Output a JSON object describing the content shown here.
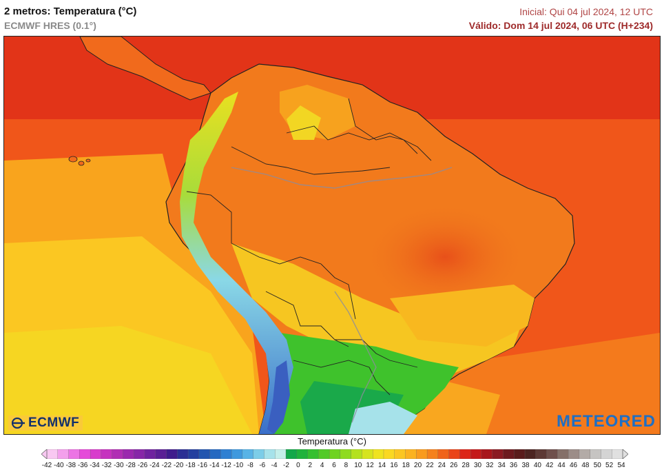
{
  "header": {
    "title": "2 metros: Temperatura (°C)",
    "model": "ECMWF HRES (0.1°)",
    "initial": "Inicial: Qui 04 jul 2024, 12 UTC",
    "valid": "Válido: Dom 14 jul 2024, 06 UTC (H+234)"
  },
  "logos": {
    "left": "ECMWF",
    "right": "METEORED"
  },
  "legend": {
    "title": "Temperatura (°C)",
    "ticks": [
      "-42",
      "-40",
      "-38",
      "-36",
      "-34",
      "-32",
      "-30",
      "-28",
      "-26",
      "-24",
      "-22",
      "-20",
      "-18",
      "-16",
      "-14",
      "-12",
      "-10",
      "-8",
      "-6",
      "-4",
      "-2",
      "0",
      "2",
      "4",
      "6",
      "8",
      "10",
      "12",
      "14",
      "16",
      "18",
      "20",
      "22",
      "24",
      "26",
      "28",
      "30",
      "32",
      "34",
      "36",
      "38",
      "40",
      "42",
      "44",
      "46",
      "48",
      "50",
      "52",
      "54"
    ],
    "colors": [
      "#f9c8f2",
      "#f3a0ec",
      "#ec74e4",
      "#e54ad9",
      "#d83ccc",
      "#c632bf",
      "#b12eb4",
      "#9b28ae",
      "#8726a8",
      "#6f229f",
      "#5a1f95",
      "#3f1c8c",
      "#2b2f94",
      "#243f9f",
      "#2255af",
      "#2569c1",
      "#2f80d2",
      "#3f99de",
      "#58b3e6",
      "#7ccde8",
      "#a6e2ea",
      "#c4efea",
      "#13a84a",
      "#20b33d",
      "#35c030",
      "#52ca28",
      "#6fd321",
      "#8fdb1f",
      "#b4e11e",
      "#d6e41f",
      "#efe320",
      "#fad822",
      "#fbc622",
      "#fbb220",
      "#f99b1e",
      "#f5811c",
      "#f0631a",
      "#ea4418",
      "#dc2618",
      "#c41a1a",
      "#a8161c",
      "#8b1a22",
      "#6d1a1f",
      "#5a1c1c",
      "#4c2421",
      "#5d3935",
      "#6f504c",
      "#857069",
      "#9c8d88",
      "#b3aba7",
      "#c6c4c2",
      "#d4d4d4",
      "#e0e0e0"
    ]
  }
}
